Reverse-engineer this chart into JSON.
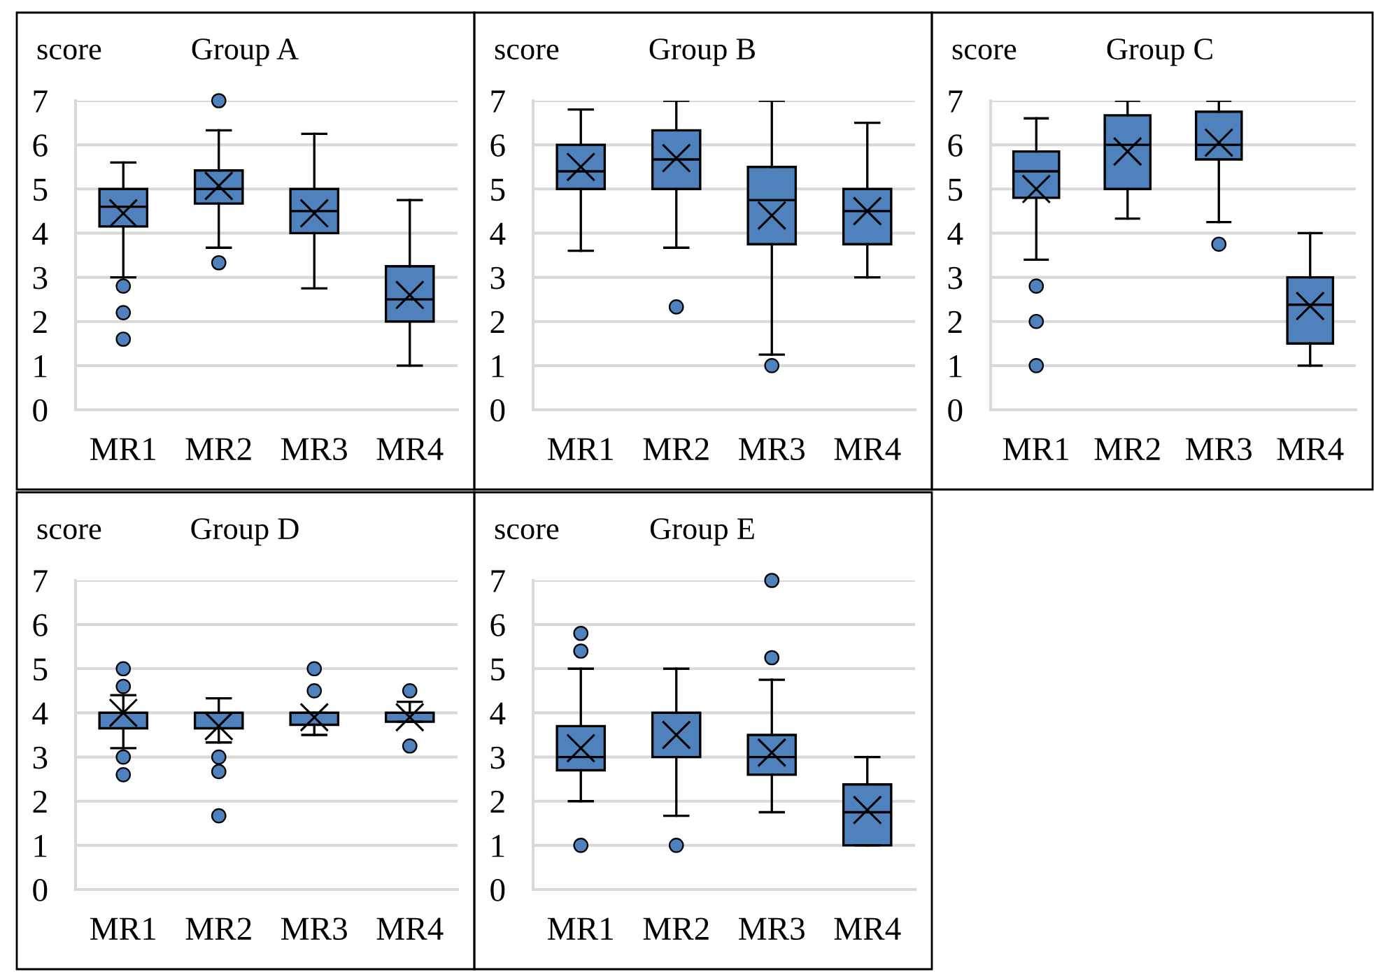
{
  "chart_data": [
    {
      "type": "box",
      "title": "Group A",
      "ylabel": "score",
      "categories": [
        "MR1",
        "MR2",
        "MR3",
        "MR4"
      ],
      "ylim": [
        0,
        7
      ],
      "yticks": [
        0,
        1,
        2,
        3,
        4,
        5,
        6,
        7
      ],
      "grid": "y",
      "color": "#4f81bd",
      "boxes": [
        {
          "low": 3.0,
          "q1": 4.15,
          "median": 4.6,
          "q3": 5.0,
          "high": 5.6,
          "mean": 4.45,
          "outliers": [
            2.8,
            2.2,
            1.6
          ]
        },
        {
          "low": 3.67,
          "q1": 4.67,
          "median": 5.0,
          "q3": 5.42,
          "high": 6.33,
          "mean": 5.07,
          "outliers": [
            7.0,
            3.33
          ]
        },
        {
          "low": 2.75,
          "q1": 4.0,
          "median": 4.5,
          "q3": 5.0,
          "high": 6.25,
          "mean": 4.45
        },
        {
          "low": 1.0,
          "q1": 2.0,
          "median": 2.5,
          "q3": 3.25,
          "high": 4.75,
          "mean": 2.6
        }
      ]
    },
    {
      "type": "box",
      "title": "Group B",
      "ylabel": "score",
      "categories": [
        "MR1",
        "MR2",
        "MR3",
        "MR4"
      ],
      "ylim": [
        0,
        7
      ],
      "yticks": [
        0,
        1,
        2,
        3,
        4,
        5,
        6,
        7
      ],
      "grid": "y",
      "color": "#4f81bd",
      "boxes": [
        {
          "low": 3.6,
          "q1": 5.0,
          "median": 5.4,
          "q3": 6.0,
          "high": 6.8,
          "mean": 5.5
        },
        {
          "low": 3.67,
          "q1": 5.0,
          "median": 5.67,
          "q3": 6.33,
          "high": 7.0,
          "mean": 5.7,
          "outliers": [
            2.33
          ]
        },
        {
          "low": 1.25,
          "q1": 3.75,
          "median": 4.75,
          "q3": 5.5,
          "high": 7.0,
          "mean": 4.4,
          "outliers": [
            1.0
          ]
        },
        {
          "low": 3.0,
          "q1": 3.75,
          "median": 4.5,
          "q3": 5.0,
          "high": 6.5,
          "mean": 4.5
        }
      ]
    },
    {
      "type": "box",
      "title": "Group C",
      "ylabel": "score",
      "categories": [
        "MR1",
        "MR2",
        "MR3",
        "MR4"
      ],
      "ylim": [
        0,
        7
      ],
      "yticks": [
        0,
        1,
        2,
        3,
        4,
        5,
        6,
        7
      ],
      "grid": "y",
      "color": "#4f81bd",
      "boxes": [
        {
          "low": 3.4,
          "q1": 4.8,
          "median": 5.4,
          "q3": 5.85,
          "high": 6.6,
          "mean": 5.0,
          "outliers": [
            2.8,
            2.0,
            1.0
          ]
        },
        {
          "low": 4.33,
          "q1": 5.0,
          "median": 6.0,
          "q3": 6.67,
          "high": 7.0,
          "mean": 5.85
        },
        {
          "low": 4.25,
          "q1": 5.67,
          "median": 6.0,
          "q3": 6.75,
          "high": 7.0,
          "mean": 6.05,
          "outliers": [
            3.75
          ]
        },
        {
          "low": 1.0,
          "q1": 1.5,
          "median": 2.38,
          "q3": 3.0,
          "high": 4.0,
          "mean": 2.35
        }
      ]
    },
    {
      "type": "box",
      "title": "Group D",
      "ylabel": "score",
      "categories": [
        "MR1",
        "MR2",
        "MR3",
        "MR4"
      ],
      "ylim": [
        0,
        7
      ],
      "yticks": [
        0,
        1,
        2,
        3,
        4,
        5,
        6,
        7
      ],
      "grid": "y",
      "color": "#4f81bd",
      "boxes": [
        {
          "low": 3.2,
          "q1": 3.65,
          "median": 4.0,
          "q3": 4.0,
          "high": 4.4,
          "mean": 4.0,
          "outliers": [
            5.0,
            4.6,
            3.0,
            2.6
          ]
        },
        {
          "low": 3.33,
          "q1": 3.65,
          "median": 4.0,
          "q3": 4.0,
          "high": 4.33,
          "mean": 3.7,
          "outliers": [
            3.0,
            2.67,
            1.67
          ]
        },
        {
          "low": 3.5,
          "q1": 3.73,
          "median": 4.0,
          "q3": 4.0,
          "high": 4.0,
          "mean": 3.9,
          "outliers": [
            5.0,
            4.5
          ]
        },
        {
          "low": 3.8,
          "q1": 3.8,
          "median": 4.0,
          "q3": 4.0,
          "high": 4.25,
          "mean": 3.9,
          "outliers": [
            4.5,
            3.25
          ]
        }
      ]
    },
    {
      "type": "box",
      "title": "Group E",
      "ylabel": "score",
      "categories": [
        "MR1",
        "MR2",
        "MR3",
        "MR4"
      ],
      "ylim": [
        0,
        7
      ],
      "yticks": [
        0,
        1,
        2,
        3,
        4,
        5,
        6,
        7
      ],
      "grid": "y",
      "color": "#4f81bd",
      "boxes": [
        {
          "low": 2.0,
          "q1": 2.7,
          "median": 3.0,
          "q3": 3.7,
          "high": 5.0,
          "mean": 3.2,
          "outliers": [
            5.8,
            5.4,
            1.0
          ]
        },
        {
          "low": 1.67,
          "q1": 3.0,
          "median": 4.0,
          "q3": 4.0,
          "high": 5.0,
          "mean": 3.5,
          "outliers": [
            1.0
          ]
        },
        {
          "low": 1.75,
          "q1": 2.6,
          "median": 3.0,
          "q3": 3.5,
          "high": 4.75,
          "mean": 3.1,
          "outliers": [
            7.0,
            5.25
          ]
        },
        {
          "low": 1.0,
          "q1": 1.0,
          "median": 1.75,
          "q3": 2.38,
          "high": 3.0,
          "mean": 1.8
        }
      ]
    }
  ]
}
